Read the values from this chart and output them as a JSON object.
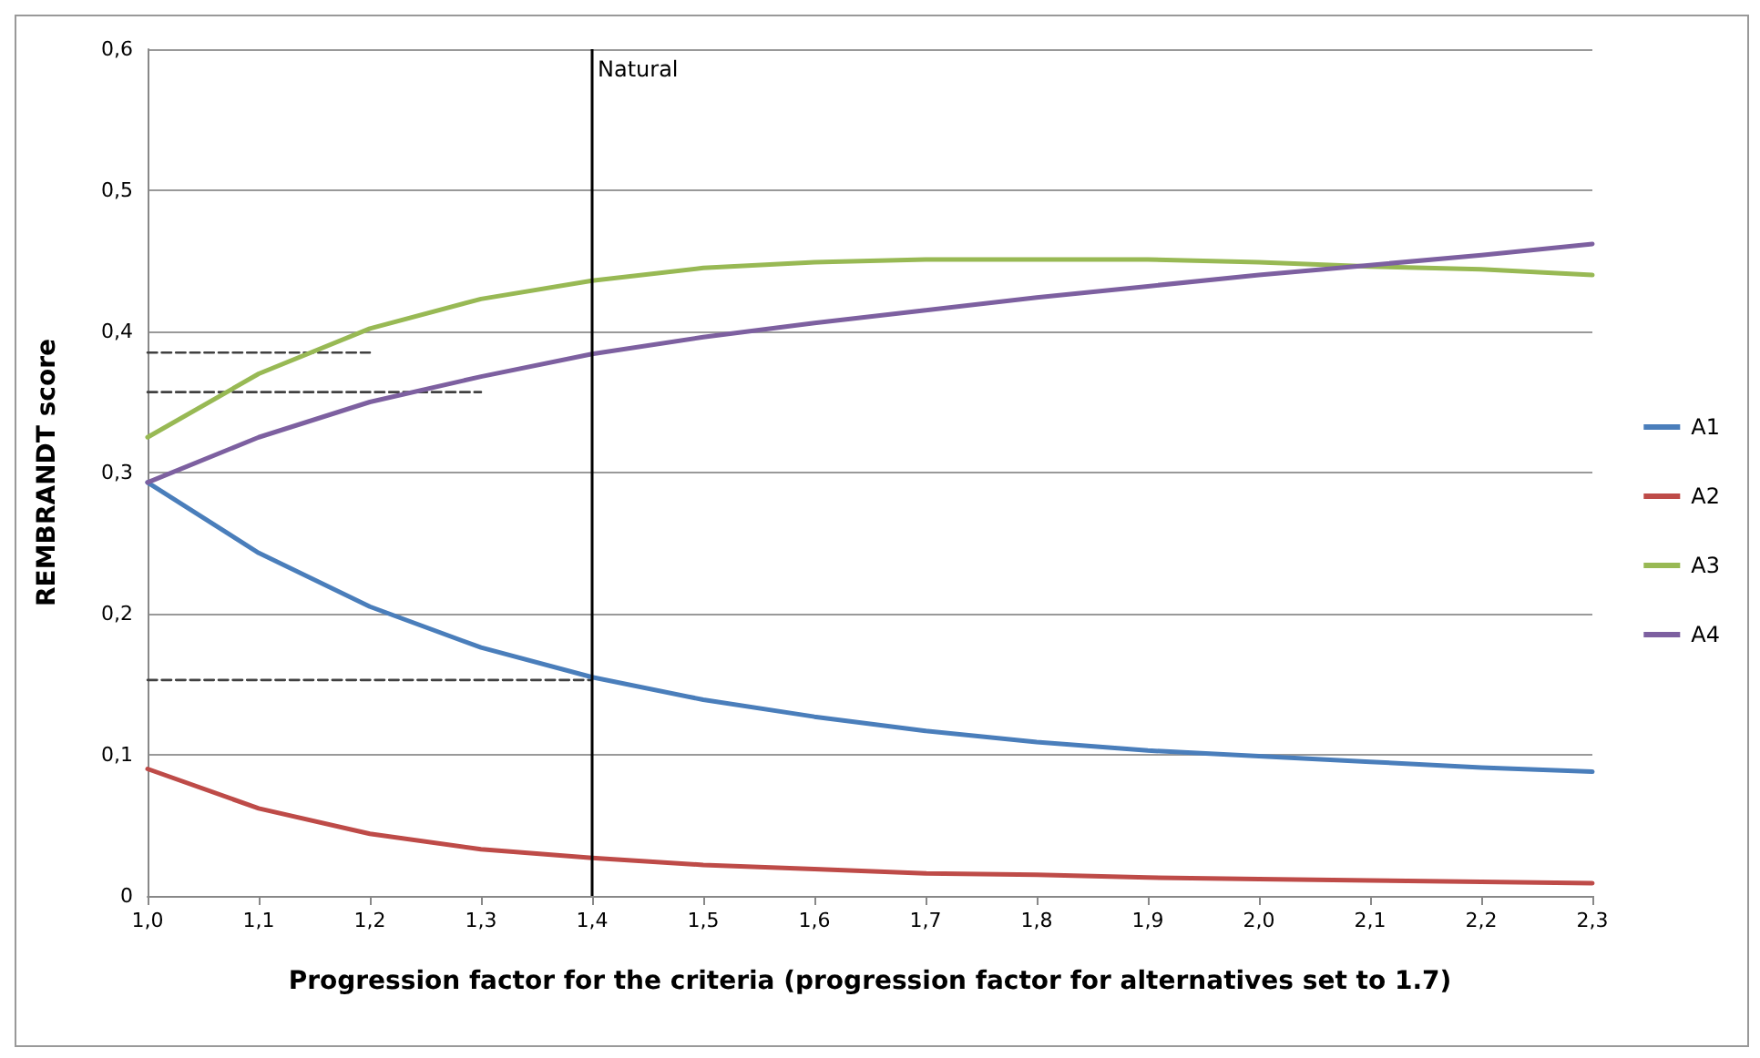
{
  "chart_data": {
    "type": "line",
    "xlabel": "Progression factor for the criteria (progression factor for alternatives set to 1.7)",
    "ylabel": "REMBRANDT score",
    "x": [
      1.0,
      1.1,
      1.2,
      1.3,
      1.4,
      1.5,
      1.6,
      1.7,
      1.8,
      1.9,
      2.0,
      2.1,
      2.2,
      2.3
    ],
    "series": [
      {
        "name": "A1",
        "color": "#4a7ebb",
        "values": [
          0.293,
          0.243,
          0.205,
          0.176,
          0.155,
          0.139,
          0.127,
          0.117,
          0.109,
          0.103,
          0.099,
          0.095,
          0.091,
          0.088
        ]
      },
      {
        "name": "A2",
        "color": "#be4b48",
        "values": [
          0.09,
          0.062,
          0.044,
          0.033,
          0.027,
          0.022,
          0.019,
          0.016,
          0.015,
          0.013,
          0.012,
          0.011,
          0.01,
          0.009
        ]
      },
      {
        "name": "A3",
        "color": "#98b954",
        "values": [
          0.325,
          0.37,
          0.402,
          0.423,
          0.436,
          0.445,
          0.449,
          0.451,
          0.451,
          0.451,
          0.449,
          0.446,
          0.444,
          0.44
        ]
      },
      {
        "name": "A4",
        "color": "#7d60a0",
        "values": [
          0.293,
          0.325,
          0.35,
          0.368,
          0.384,
          0.396,
          0.406,
          0.415,
          0.424,
          0.432,
          0.44,
          0.447,
          0.454,
          0.462
        ]
      },
      {
        "type": "line",
        "color": "#404040",
        "line_style": "dashed",
        "x": [
          1.0,
          1.2
        ],
        "values": [
          0.385,
          0.385
        ]
      },
      {
        "type": "line",
        "color": "#404040",
        "line_style": "dashed",
        "x": [
          1.0,
          1.3
        ],
        "values": [
          0.357,
          0.357
        ]
      },
      {
        "type": "line",
        "color": "#404040",
        "line_style": "dashed",
        "x": [
          1.0,
          1.4
        ],
        "values": [
          0.153,
          0.153
        ]
      }
    ],
    "xlim": [
      1.0,
      2.3
    ],
    "xticks": [
      {
        "value": 1.0,
        "label": "1,0"
      },
      {
        "value": 1.1,
        "label": "1,1"
      },
      {
        "value": 1.2,
        "label": "1,2"
      },
      {
        "value": 1.3,
        "label": "1,3"
      },
      {
        "value": 1.4,
        "label": "1,4"
      },
      {
        "value": 1.5,
        "label": "1,5"
      },
      {
        "value": 1.6,
        "label": "1,6"
      },
      {
        "value": 1.7,
        "label": "1,7"
      },
      {
        "value": 1.8,
        "label": "1,8"
      },
      {
        "value": 1.9,
        "label": "1,9"
      },
      {
        "value": 2.0,
        "label": "2,0"
      },
      {
        "value": 2.1,
        "label": "2,1"
      },
      {
        "value": 2.2,
        "label": "2,2"
      },
      {
        "value": 2.3,
        "label": "2,3"
      }
    ],
    "ylim": [
      0,
      0.6
    ],
    "yticks": [
      0,
      {
        "value": 0.1,
        "label": "0,1"
      },
      {
        "value": 0.2,
        "label": "0,2"
      },
      {
        "value": 0.3,
        "label": "0,3"
      },
      {
        "value": 0.4,
        "label": "0,4"
      },
      {
        "value": 0.5,
        "label": "0,5"
      },
      {
        "value": 0.6,
        "label": "0,6"
      }
    ],
    "grid": "y",
    "legend": "right",
    "marker": "none",
    "line_style": "solid",
    "ref_lines": [
      {
        "axis": "x",
        "value": 1.4,
        "label": "Natural",
        "color": "#000000"
      }
    ]
  }
}
